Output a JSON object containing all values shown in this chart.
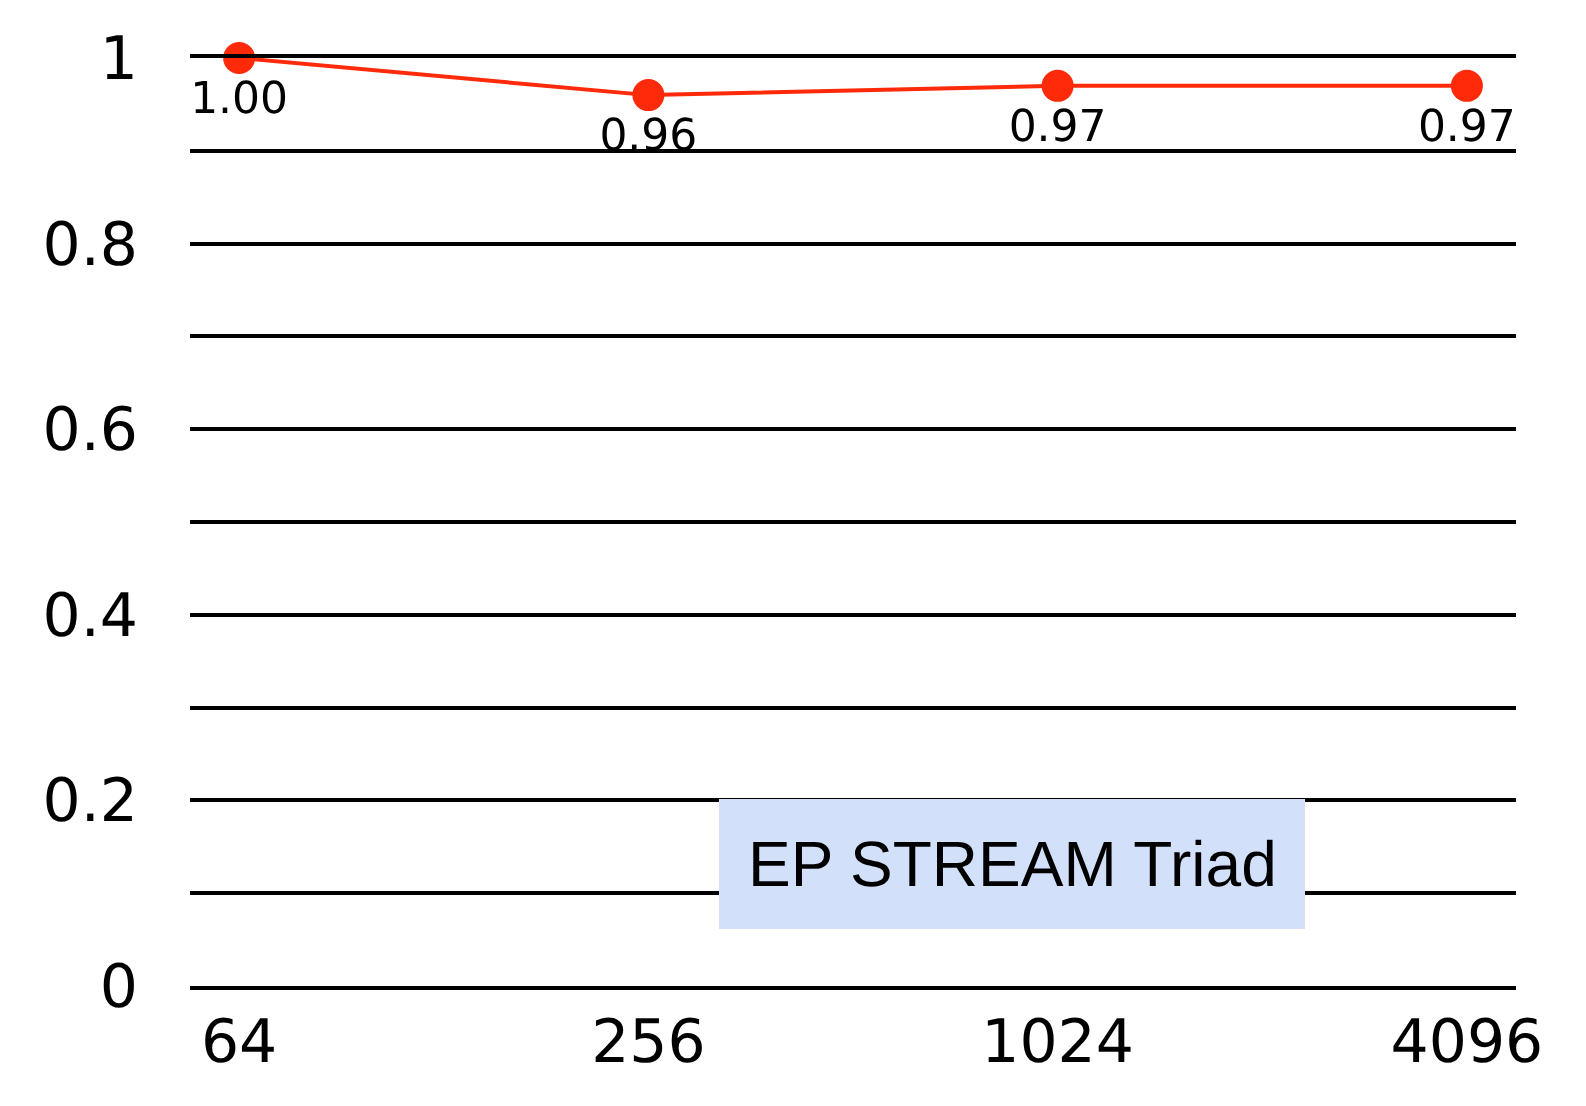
{
  "chart_data": {
    "type": "line",
    "title": "EP STREAM Triad",
    "categories": [
      "64",
      "256",
      "1024",
      "4096"
    ],
    "series": [
      {
        "color": "#ff2a0a",
        "values": [
          1.0,
          0.96,
          0.97,
          0.97
        ],
        "value_labels": [
          "1.00",
          "0.96",
          "0.97",
          "0.97"
        ]
      }
    ],
    "marker": "circle",
    "line_style": "solid",
    "ylim": [
      0,
      1
    ],
    "yticks": [
      0,
      {
        "value": 0.1,
        "label": null
      },
      0.2,
      {
        "value": 0.3,
        "label": null
      },
      0.4,
      {
        "value": 0.5,
        "label": null
      },
      0.6,
      {
        "value": 0.7,
        "label": null
      },
      0.8,
      {
        "value": 0.9,
        "label": null
      },
      {
        "value": 1,
        "label": "1"
      }
    ],
    "grid": "y"
  }
}
